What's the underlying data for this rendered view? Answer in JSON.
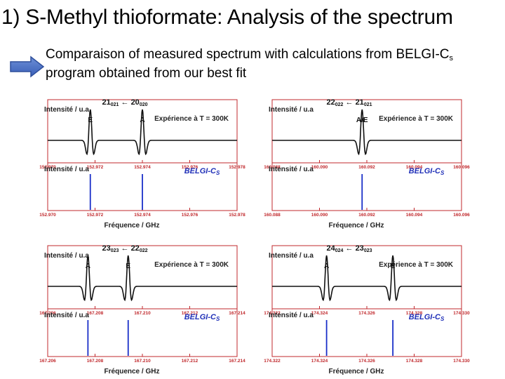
{
  "title": "1) S-Methyl thioformate: Analysis of the spectrum",
  "description": {
    "line1_prefix": "Comparaison of measured spectrum with calculations from BELGI-C",
    "line1_sub": "s",
    "line2": "program obtained from our best fit"
  },
  "colors": {
    "axis": "#c0282c",
    "stick": "#1a2fc8",
    "trace": "#111111",
    "belgi": "#2030b8"
  },
  "common": {
    "intensity_label": "Intensité / u.a",
    "experiment_label": "Expérience à T = 300K",
    "belgi_label": "BELGI-C",
    "belgi_sub": "S",
    "freq_label": "Fréquence / GHz",
    "arrow_glyph": "←"
  },
  "chart_data": [
    {
      "type": "line",
      "title": "21_021 ← 20_020",
      "upper_j": "21",
      "upper_k": "021",
      "lower_j": "20",
      "lower_k": "020",
      "xlabel": "Fréquence / GHz",
      "ylabel": "Intensité / u.a",
      "xlim": [
        152.97,
        152.978
      ],
      "ticks": [
        "152.970",
        "152.972",
        "152.974",
        "152.976",
        "152.978"
      ],
      "peaks": [
        {
          "label": "E",
          "x": 152.9718
        },
        {
          "label": "A",
          "x": 152.974
        }
      ],
      "sticks": [
        152.9718,
        152.974
      ]
    },
    {
      "type": "line",
      "title": "22_022 ← 21_021",
      "upper_j": "22",
      "upper_k": "022",
      "lower_j": "21",
      "lower_k": "021",
      "xlabel": "Fréquence / GHz",
      "ylabel": "Intensité / u.a",
      "xlim": [
        160.088,
        160.096
      ],
      "ticks": [
        "160.088",
        "160.090",
        "160.092",
        "160.094",
        "160.096"
      ],
      "peaks": [
        {
          "label": "A/E",
          "x": 160.0918
        }
      ],
      "sticks": [
        160.0918
      ]
    },
    {
      "type": "line",
      "title": "23_023 ← 22_022",
      "upper_j": "23",
      "upper_k": "023",
      "lower_j": "22",
      "lower_k": "022",
      "xlabel": "Fréquence / GHz",
      "ylabel": "Intensité / u.a",
      "xlim": [
        167.206,
        167.214
      ],
      "ticks": [
        "167.206",
        "167.208",
        "167.210",
        "167.212",
        "167.214"
      ],
      "peaks": [
        {
          "label": "A",
          "x": 167.2077
        },
        {
          "label": "E",
          "x": 167.2094
        }
      ],
      "sticks": [
        167.2077,
        167.2094
      ]
    },
    {
      "type": "line",
      "title": "24_024 ← 23_023",
      "upper_j": "24",
      "upper_k": "024",
      "lower_j": "23",
      "lower_k": "023",
      "xlabel": "Fréquence / GHz",
      "ylabel": "Intensité / u.a",
      "xlim": [
        174.322,
        174.33
      ],
      "ticks": [
        "174.322",
        "174.324",
        "174.326",
        "174.328",
        "174.330"
      ],
      "peaks": [
        {
          "label": "A",
          "x": 174.3243
        },
        {
          "label": "E",
          "x": 174.3271
        }
      ],
      "sticks": [
        174.3243,
        174.3271
      ]
    }
  ]
}
